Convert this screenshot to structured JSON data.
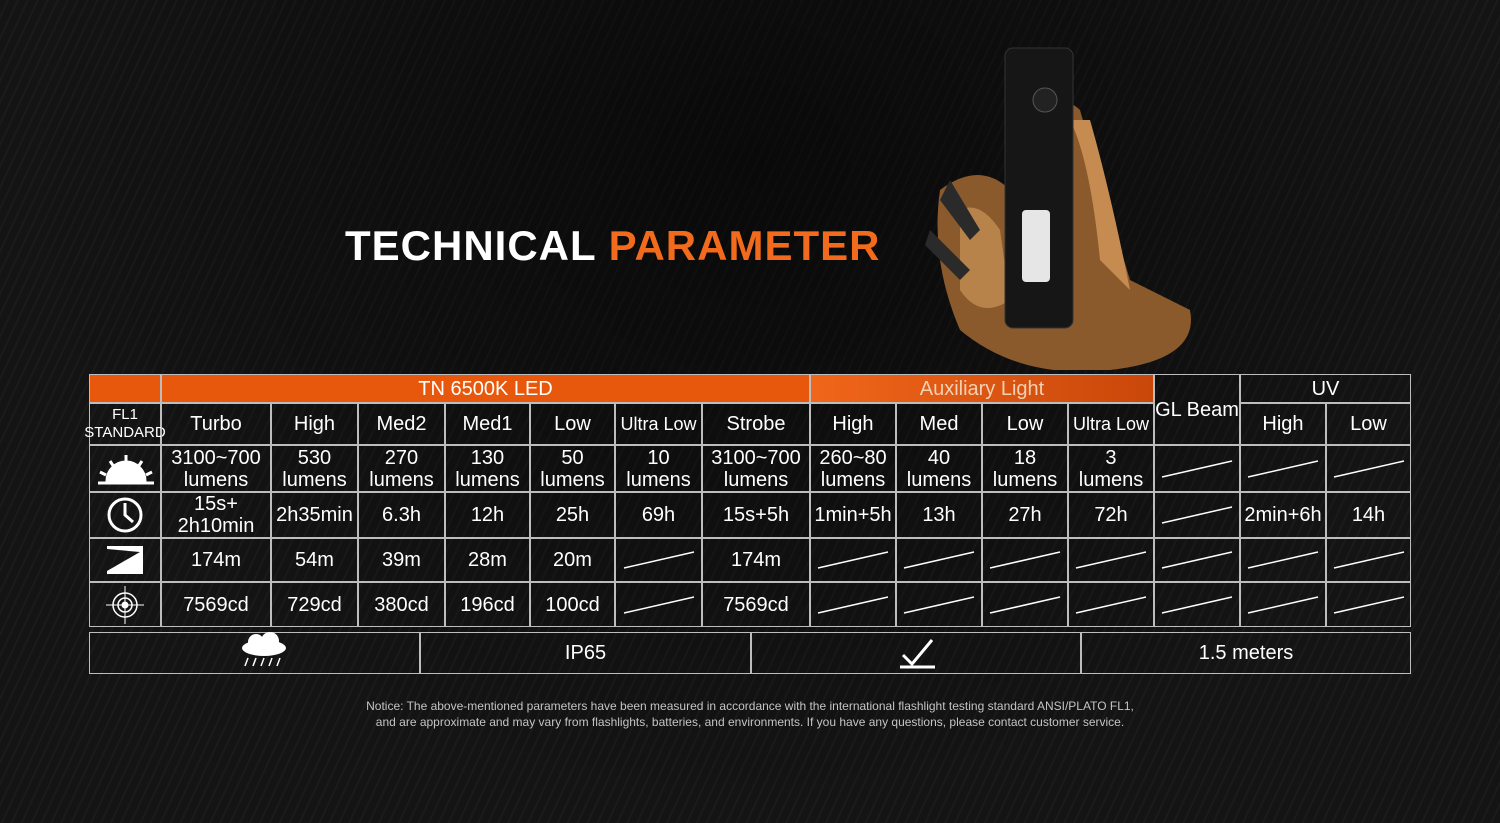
{
  "title": {
    "first": "TECHNICAL",
    "second": "PARAMETER"
  },
  "table": {
    "groups": [
      "TN 6500K LED",
      "Auxiliary Light",
      "GL Beam",
      "UV"
    ],
    "standard": [
      "FL1",
      "STANDARD"
    ],
    "modes": [
      "Turbo",
      "High",
      "Med2",
      "Med1",
      "Low",
      "Ultra Low",
      "Strobe",
      "High",
      "Med",
      "Low",
      "Ultra Low",
      null,
      "High",
      "Low"
    ],
    "rows": [
      [
        "3100~700\nlumens",
        "530\nlumens",
        "270\nlumens",
        "130\nlumens",
        "50\nlumens",
        "10\nlumens",
        "3100~700\nlumens",
        "260~80\nlumens",
        "40\nlumens",
        "18\nlumens",
        "3\nlumens",
        null,
        null,
        null
      ],
      [
        "15s+\n2h10min",
        "2h35min",
        "6.3h",
        "12h",
        "25h",
        "69h",
        "15s+5h",
        "1min+5h",
        "13h",
        "27h",
        "72h",
        null,
        "2min+6h",
        "14h"
      ],
      [
        "174m",
        "54m",
        "39m",
        "28m",
        "20m",
        null,
        "174m",
        null,
        null,
        null,
        null,
        null,
        null,
        null
      ],
      [
        "7569cd",
        "729cd",
        "380cd",
        "196cd",
        "100cd",
        null,
        "7569cd",
        null,
        null,
        null,
        null,
        null,
        null,
        null
      ]
    ]
  },
  "bottom": {
    "waterproof": "IP65",
    "impact": "1.5 meters"
  },
  "notice": [
    "Notice: The above-mentioned parameters have been measured in accordance with the international flashlight testing standard ANSI/PLATO FL1,",
    "and are approximate and may vary from flashlights, batteries, and environments. If you have any questions, please contact customer service."
  ]
}
